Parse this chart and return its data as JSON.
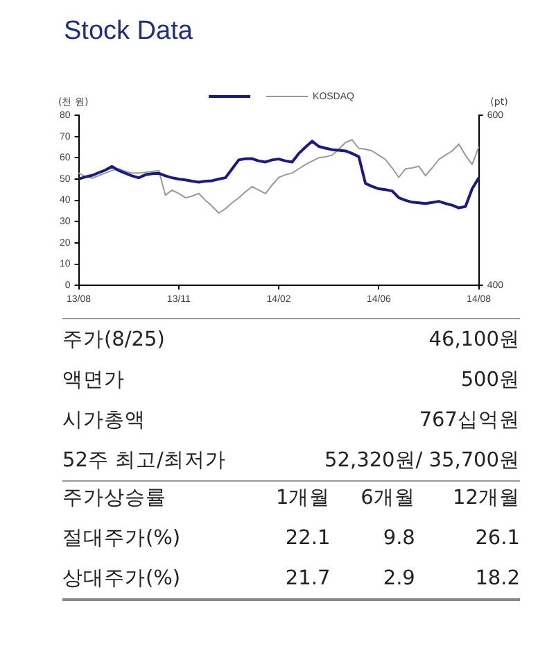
{
  "chart_data": [
    {
      "type": "line",
      "title": "Stock Data",
      "ylabel": "(천 원)",
      "y2label": "(pt)",
      "legend": "top",
      "categories": [
        "13/08",
        null,
        null,
        null,
        null,
        null,
        null,
        null,
        null,
        null,
        null,
        null,
        null,
        null,
        null,
        "13/11",
        null,
        null,
        null,
        null,
        null,
        null,
        null,
        null,
        null,
        null,
        null,
        null,
        null,
        null,
        "14/02",
        null,
        null,
        null,
        null,
        null,
        null,
        null,
        null,
        null,
        null,
        null,
        null,
        null,
        null,
        "14/06",
        null,
        null,
        null,
        null,
        null,
        null,
        null,
        null,
        null,
        null,
        null,
        null,
        null,
        null,
        "14/08"
      ],
      "ylim": [
        0,
        80
      ],
      "yticks": [
        0,
        10,
        20,
        30,
        40,
        50,
        60,
        70,
        80
      ],
      "y2lim": [
        400,
        600
      ],
      "y2ticks": [
        400,
        600
      ],
      "grid": false,
      "marker": "none",
      "series": [
        {
          "color": "#1a1a80",
          "values": [
            50,
            51,
            51.7,
            53,
            54.2,
            55.9,
            54,
            52.7,
            51.5,
            50.6,
            52,
            52.5,
            52.7,
            51.5,
            50.6,
            50,
            49.6,
            49,
            48.5,
            49,
            49.2,
            50,
            50.6,
            54.8,
            59,
            59.5,
            59.6,
            58.5,
            58,
            59,
            59.4,
            58.5,
            58,
            62,
            65,
            67.8,
            65.3,
            64.5,
            63.8,
            63.5,
            63.2,
            62,
            60.5,
            47.9,
            46.5,
            45.4,
            45,
            44.4,
            41.2,
            40,
            39.1,
            38.8,
            38.5,
            39,
            39.5,
            38.5,
            37.7,
            36.4,
            37.1,
            45.4,
            50.6
          ]
        },
        {
          "name": "KOSDAQ",
          "color": "#999999",
          "axis": "y2",
          "values": [
            532,
            528,
            526,
            529,
            532,
            535,
            537,
            534,
            532,
            532,
            533,
            534,
            535,
            506,
            512,
            508,
            503,
            505,
            508,
            500,
            493,
            485,
            490,
            497,
            503,
            510,
            516,
            512,
            508,
            518,
            527,
            530,
            532,
            537,
            542,
            546,
            550,
            551,
            553,
            560,
            568,
            571,
            561,
            560,
            558,
            553,
            548,
            538,
            527,
            537,
            538,
            540,
            529,
            538,
            548,
            553,
            558,
            566,
            553,
            542,
            563
          ]
        }
      ]
    },
    {
      "type": "other",
      "annotations": [
        "주가(8/25)",
        "46,100원",
        "액면가",
        "500원",
        "시가총액",
        "767십억원",
        "52주 최고/최저가",
        "52,320원/ 35,700원"
      ]
    },
    {
      "type": "other",
      "annotations": [
        "주가상승률",
        "1개월",
        "6개월",
        "12개월",
        "절대주가(%)",
        "22.1",
        "9.8",
        "26.1",
        "상대주가(%)",
        "21.7",
        "2.9",
        "18.2"
      ]
    }
  ]
}
